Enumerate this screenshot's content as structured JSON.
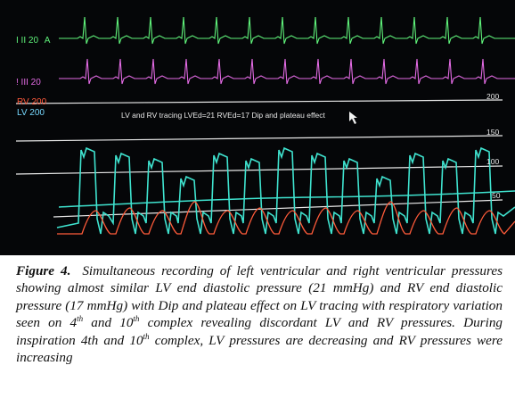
{
  "monitor": {
    "lead1": {
      "text": "I II 20",
      "suffix": "A",
      "color": "#5ff27a"
    },
    "lead2": {
      "text": "! III 20",
      "color": "#e36be4"
    },
    "rv_scale": {
      "text": "RV 200",
      "color": "#ff5a3c"
    },
    "lv_scale": {
      "text": "LV 200",
      "color": "#77d9ff"
    },
    "annotation": "LV and RV tracing LVEd=21 RVEd=17 Dip and plateau effect",
    "scale_top": "200",
    "scale_150": "150",
    "scale_100": "100",
    "scale_50": "50",
    "colors": {
      "lv": "#3fe3cf",
      "rv": "#ff5b3a",
      "ecg1": "#5ff27a",
      "ecg2": "#e36be4",
      "grid": "#e8e8e8"
    }
  },
  "caption": {
    "label": "Figure 4.",
    "p1": "Simultaneous recording of left ventricular and right ventricular pressures showing almost similar LV end diastolic pressure (21 mmHg) and RV end diastolic pressure (17 mmHg) with Dip and plateau effect on LV tracing with respiratory variation seen on 4",
    "sup1": "th",
    "p2": " and 10",
    "sup2": "th",
    "p3": " complex revealing discordant LV and RV pressures.",
    "p4": "During inspiration 4th and 10",
    "sup3": "th",
    "p5": " complex, LV pressures are decreasing and RV pressures were increasing"
  }
}
